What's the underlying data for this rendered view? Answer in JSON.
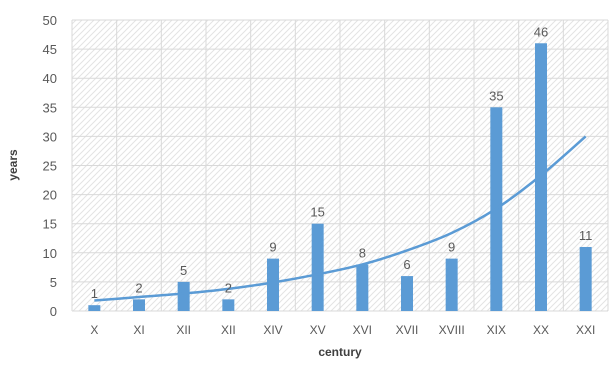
{
  "chart_data": {
    "type": "bar",
    "categories": [
      "X",
      "XI",
      "XII",
      "XII",
      "XIV",
      "XV",
      "XVI",
      "XVII",
      "XVIII",
      "XIX",
      "XX",
      "XXI"
    ],
    "series": [
      {
        "values": [
          1,
          2,
          5,
          2,
          9,
          15,
          8,
          6,
          9,
          35,
          46,
          11
        ]
      }
    ],
    "data_labels": [
      "1",
      "2",
      "5",
      "2",
      "9",
      "15",
      "8",
      "6",
      "9",
      "35",
      "46",
      "11"
    ],
    "trendline": {
      "type": "exponential",
      "values": [
        1.8,
        2.4,
        3.0,
        3.8,
        4.9,
        6.3,
        8.0,
        10.4,
        13.4,
        17.6,
        23.3,
        30.0
      ]
    },
    "xlabel": "century",
    "ylabel": "years",
    "ylim": [
      0,
      50
    ],
    "yticks": [
      0,
      5,
      10,
      15,
      20,
      25,
      30,
      35,
      40,
      45,
      50
    ],
    "grid": true,
    "plot_background": "hatched",
    "colors": {
      "bar": "#5b9bd5",
      "trendline": "#5b9bd5",
      "grid": "#d9d9d9",
      "hatch": "#e3e3e3",
      "text": "#595959",
      "axis_title": "#404040"
    }
  }
}
